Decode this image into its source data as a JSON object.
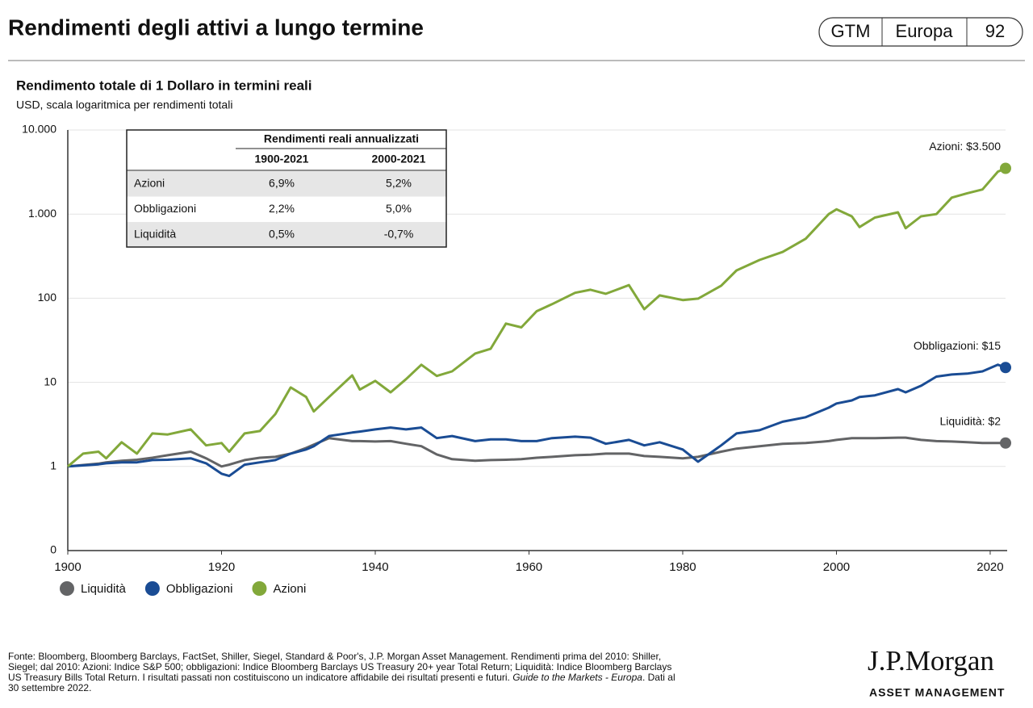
{
  "header": {
    "title": "Rendimenti degli attivi a lungo termine",
    "badge": [
      "GTM",
      "Europa",
      "92"
    ]
  },
  "chart_data": {
    "type": "line",
    "title": "Rendimento totale di 1 Dollaro in termini reali",
    "subtitle": "USD, scala logaritmica per rendimenti totali",
    "log_scale": true,
    "grid": true,
    "x": [
      1900,
      1902,
      1904,
      1905,
      1907,
      1909,
      1911,
      1913,
      1916,
      1918,
      1920,
      1921,
      1923,
      1925,
      1927,
      1929,
      1931,
      1932,
      1934,
      1937,
      1938,
      1940,
      1942,
      1944,
      1946,
      1948,
      1950,
      1953,
      1955,
      1957,
      1959,
      1961,
      1963,
      1966,
      1968,
      1970,
      1973,
      1975,
      1977,
      1980,
      1982,
      1985,
      1987,
      1990,
      1993,
      1996,
      1999,
      2000,
      2002,
      2003,
      2005,
      2008,
      2009,
      2011,
      2013,
      2015,
      2017,
      2019,
      2021,
      2022
    ],
    "xlim": [
      1900,
      2022
    ],
    "xticks": [
      1900,
      1920,
      1940,
      1960,
      1980,
      2000,
      2020
    ],
    "ylim": [
      0.1,
      10000
    ],
    "yticks": [
      {
        "value": 0.1,
        "label": "0"
      },
      1,
      10,
      100,
      {
        "value": 1000,
        "label": "1.000"
      },
      {
        "value": 10000,
        "label": "10.000"
      }
    ],
    "series": [
      {
        "name": "Liquidità",
        "color": "#636466",
        "end_label": "Liquidità: $2",
        "values": [
          1,
          1.04,
          1.08,
          1.12,
          1.17,
          1.2,
          1.27,
          1.36,
          1.5,
          1.25,
          1.0,
          1.05,
          1.19,
          1.27,
          1.3,
          1.42,
          1.66,
          1.82,
          2.17,
          2.0,
          2.0,
          1.98,
          2.0,
          1.86,
          1.74,
          1.39,
          1.22,
          1.17,
          1.19,
          1.2,
          1.22,
          1.27,
          1.3,
          1.36,
          1.38,
          1.42,
          1.42,
          1.33,
          1.3,
          1.25,
          1.3,
          1.5,
          1.63,
          1.74,
          1.86,
          1.9,
          2.0,
          2.07,
          2.17,
          2.17,
          2.17,
          2.2,
          2.2,
          2.07,
          2.0,
          1.98,
          1.94,
          1.9,
          1.9,
          1.9
        ]
      },
      {
        "name": "Obbligazioni",
        "color": "#1a4c94",
        "end_label": "Obbligazioni: $15",
        "values": [
          1,
          1.03,
          1.06,
          1.09,
          1.12,
          1.12,
          1.19,
          1.2,
          1.25,
          1.09,
          0.82,
          0.77,
          1.05,
          1.12,
          1.19,
          1.42,
          1.59,
          1.74,
          2.3,
          2.53,
          2.6,
          2.76,
          2.9,
          2.76,
          2.9,
          2.17,
          2.3,
          2.0,
          2.1,
          2.1,
          2.0,
          2.0,
          2.17,
          2.26,
          2.2,
          1.86,
          2.07,
          1.78,
          1.94,
          1.59,
          1.14,
          1.78,
          2.47,
          2.7,
          3.4,
          3.85,
          5.0,
          5.6,
          6.1,
          6.7,
          7.0,
          8.3,
          7.6,
          9.1,
          11.7,
          12.4,
          12.7,
          13.5,
          16.2,
          15
        ]
      },
      {
        "name": "Azioni",
        "color": "#82a83a",
        "end_label": "Azioni: $3.500",
        "values": [
          1,
          1.42,
          1.5,
          1.25,
          1.94,
          1.42,
          2.47,
          2.4,
          2.76,
          1.78,
          1.9,
          1.5,
          2.47,
          2.64,
          4.2,
          8.7,
          6.7,
          4.5,
          6.7,
          12.1,
          8.2,
          10.4,
          7.6,
          10.9,
          16.2,
          11.9,
          13.5,
          22,
          25,
          50,
          45,
          70,
          85,
          116,
          126,
          113,
          143,
          74,
          108,
          95,
          99,
          141,
          214,
          285,
          355,
          510,
          1000,
          1140,
          940,
          700,
          910,
          1050,
          680,
          940,
          1000,
          1570,
          1770,
          1960,
          3200,
          3500
        ]
      }
    ],
    "table": {
      "group_header": "Rendimenti reali annualizzati",
      "columns": [
        "1900-2021",
        "2000-2021"
      ],
      "rows": [
        [
          "Azioni",
          "6,9%",
          "5,2%"
        ],
        [
          "Obbligazioni",
          "2,2%",
          "5,0%"
        ],
        [
          "Liquidità",
          "0,5%",
          "-0,7%"
        ]
      ]
    }
  },
  "footnote": [
    [
      {
        "text": "Fonte: Bloomberg, Bloomberg Barclays, FactSet, Shiller, Siegel, Standard & Poor's, J.P. Morgan Asset Management. Rendimenti prima del 2010: Shiller,"
      }
    ],
    [
      {
        "text": "Siegel; dal 2010: Azioni: Indice S&P 500; obbligazioni: Indice Bloomberg Barclays US Treasury 20+ year Total Return; Liquidità: Indice Bloomberg Barclays"
      }
    ],
    [
      {
        "text": "US Treasury Bills Total Return. I risultati passati non costituiscono un indicatore affidabile dei risultati presenti e futuri. "
      },
      {
        "text": "Guide to the Markets - Europa",
        "italic": true
      },
      {
        "text": ". Dati al"
      }
    ],
    [
      {
        "text": "30 settembre 2022."
      }
    ]
  ],
  "logo": {
    "name": "J.P.Morgan",
    "tagline": "ASSET MANAGEMENT"
  }
}
